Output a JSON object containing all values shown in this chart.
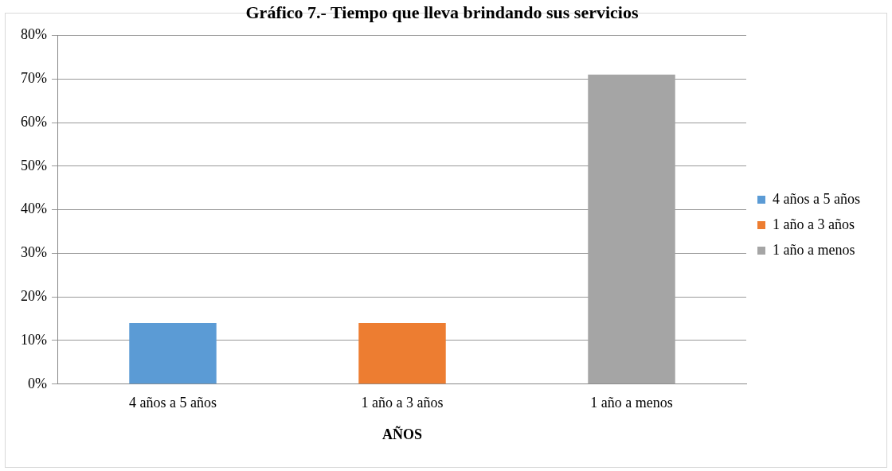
{
  "chart_data": {
    "type": "bar",
    "title": "Gráfico 7.- Tiempo que lleva brindando sus servicios",
    "xlabel": "AÑOS",
    "categories": [
      "4 años a 5 años",
      "1 año a 3 años",
      "1 año a menos"
    ],
    "series": [
      {
        "name": "4 años a 5 años",
        "color": "#5b9bd5",
        "values": [
          14,
          null,
          null
        ]
      },
      {
        "name": "1 año a 3 años",
        "color": "#ed7d31",
        "values": [
          null,
          14,
          null
        ]
      },
      {
        "name": "1 año a menos",
        "color": "#a5a5a5",
        "values": [
          null,
          null,
          71
        ]
      }
    ],
    "ylim": [
      0,
      80
    ],
    "yticks": [
      {
        "value": 0,
        "label": "0%"
      },
      {
        "value": 10,
        "label": "10%"
      },
      {
        "value": 20,
        "label": "20%"
      },
      {
        "value": 30,
        "label": "30%"
      },
      {
        "value": 40,
        "label": "40%"
      },
      {
        "value": 50,
        "label": "50%"
      },
      {
        "value": 60,
        "label": "60%"
      },
      {
        "value": 70,
        "label": "70%"
      },
      {
        "value": 80,
        "label": "80%"
      }
    ],
    "grid": "y",
    "legend": "right"
  }
}
